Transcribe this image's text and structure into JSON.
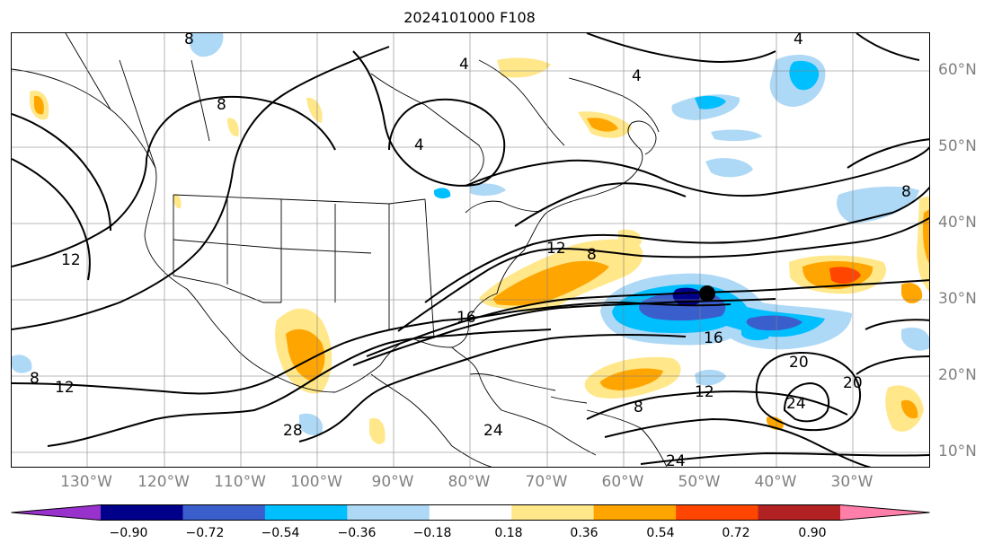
{
  "title": "2024101000 F108",
  "map": {
    "lon_labels": [
      "130°W",
      "120°W",
      "110°W",
      "100°W",
      "90°W",
      "80°W",
      "70°W",
      "60°W",
      "50°W",
      "40°W",
      "30°W"
    ],
    "lat_labels": [
      "60°N",
      "50°N",
      "40°N",
      "30°N",
      "20°N",
      "10°N"
    ],
    "contour_labels": [
      "8",
      "4",
      "4",
      "8",
      "4",
      "12",
      "8",
      "12",
      "16",
      "28",
      "24",
      "20",
      "20",
      "24",
      "16",
      "12",
      "12",
      "8",
      "24",
      "8",
      "4",
      "8"
    ],
    "grid": true,
    "extent": {
      "lon_min": -131.5,
      "lon_max": -25,
      "lat_min": 8,
      "lat_max": 65
    },
    "storm_center": {
      "lon": -50,
      "lat": 31
    }
  },
  "colorbar": {
    "ticks": [
      "−0.90",
      "−0.72",
      "−0.54",
      "−0.36",
      "−0.18",
      "0.18",
      "0.36",
      "0.54",
      "0.72",
      "0.90"
    ],
    "colors": [
      "#9932CC",
      "#00008B",
      "#3A5FCD",
      "#00BFFF",
      "#ADD8F6",
      "#FFFFFF",
      "#FFE78A",
      "#FFA500",
      "#FF4500",
      "#B22222",
      "#FF7FAA"
    ]
  }
}
